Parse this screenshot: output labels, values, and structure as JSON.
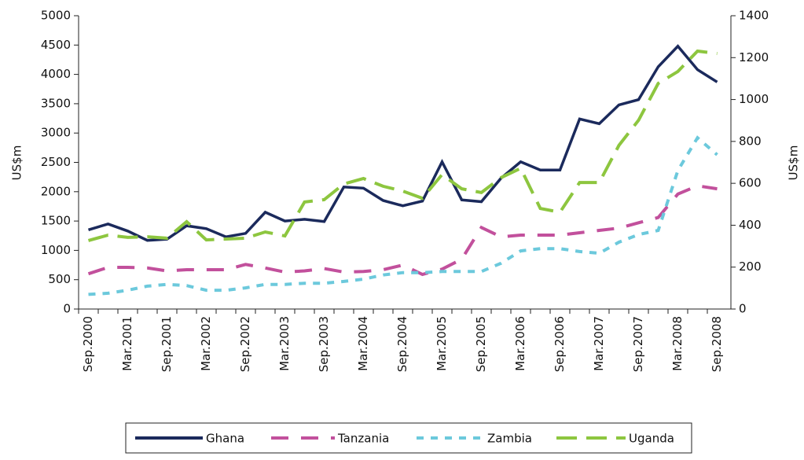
{
  "chart_data": {
    "type": "line",
    "categories": [
      "Sep.2000",
      null,
      "Mar.2001",
      null,
      "Sep.2001",
      null,
      "Mar.2002",
      null,
      "Sep.2002",
      null,
      "Mar.2003",
      null,
      "Sep.2003",
      null,
      "Mar.2004",
      null,
      "Sep.2004",
      null,
      "Mar.2005",
      null,
      "Sep.2005",
      null,
      "Mar.2006",
      null,
      "Sep.2006",
      null,
      "Mar.2007",
      null,
      "Sep.2007",
      null,
      "Mar.2008",
      null,
      "Sep.2008"
    ],
    "ylabel": "US$m",
    "y2label": "US$m",
    "ylim": [
      0,
      5000
    ],
    "yticks": [
      0,
      500,
      1000,
      1500,
      2000,
      2500,
      3000,
      3500,
      4000,
      4500,
      5000
    ],
    "y2lim": [
      0,
      1400
    ],
    "y2ticks": [
      0,
      200,
      400,
      600,
      800,
      1000,
      1200,
      1400
    ],
    "legend": "bottom",
    "series": [
      {
        "name": "Ghana",
        "color": "#1b2a5c",
        "dash": "solid",
        "values": [
          1350,
          1450,
          1330,
          1170,
          1190,
          1420,
          1370,
          1230,
          1290,
          1650,
          1500,
          1530,
          1490,
          2080,
          2060,
          1850,
          1760,
          1840,
          2510,
          1860,
          1830,
          2230,
          2510,
          2370,
          2370,
          3240,
          3160,
          3480,
          3570,
          4130,
          4480,
          4080,
          3870
        ]
      },
      {
        "name": "Tanzania",
        "color": "#c2509c",
        "dash": "dash",
        "values": [
          600,
          710,
          710,
          700,
          650,
          670,
          670,
          670,
          760,
          700,
          630,
          650,
          690,
          630,
          640,
          670,
          750,
          590,
          680,
          850,
          1390,
          1230,
          1260,
          1260,
          1260,
          1300,
          1340,
          1380,
          1470,
          1560,
          1960,
          2100,
          2050
        ]
      },
      {
        "name": "Zambia",
        "color": "#6cc9dc",
        "dash": "dot",
        "values": [
          250,
          270,
          320,
          390,
          420,
          400,
          320,
          320,
          360,
          420,
          420,
          440,
          440,
          470,
          510,
          580,
          620,
          620,
          640,
          640,
          640,
          780,
          990,
          1030,
          1030,
          980,
          950,
          1140,
          1270,
          1340,
          2360,
          2920,
          2630
        ]
      },
      {
        "name": "Uganda",
        "color": "#8dc63f",
        "dash": "longdash",
        "axis": "y2",
        "values": [
          327,
          353,
          342,
          345,
          338,
          417,
          330,
          334,
          338,
          368,
          349,
          511,
          522,
          597,
          623,
          586,
          563,
          529,
          642,
          574,
          556,
          627,
          672,
          480,
          462,
          604,
          604,
          781,
          901,
          1077,
          1134,
          1231,
          1220
        ]
      }
    ]
  }
}
